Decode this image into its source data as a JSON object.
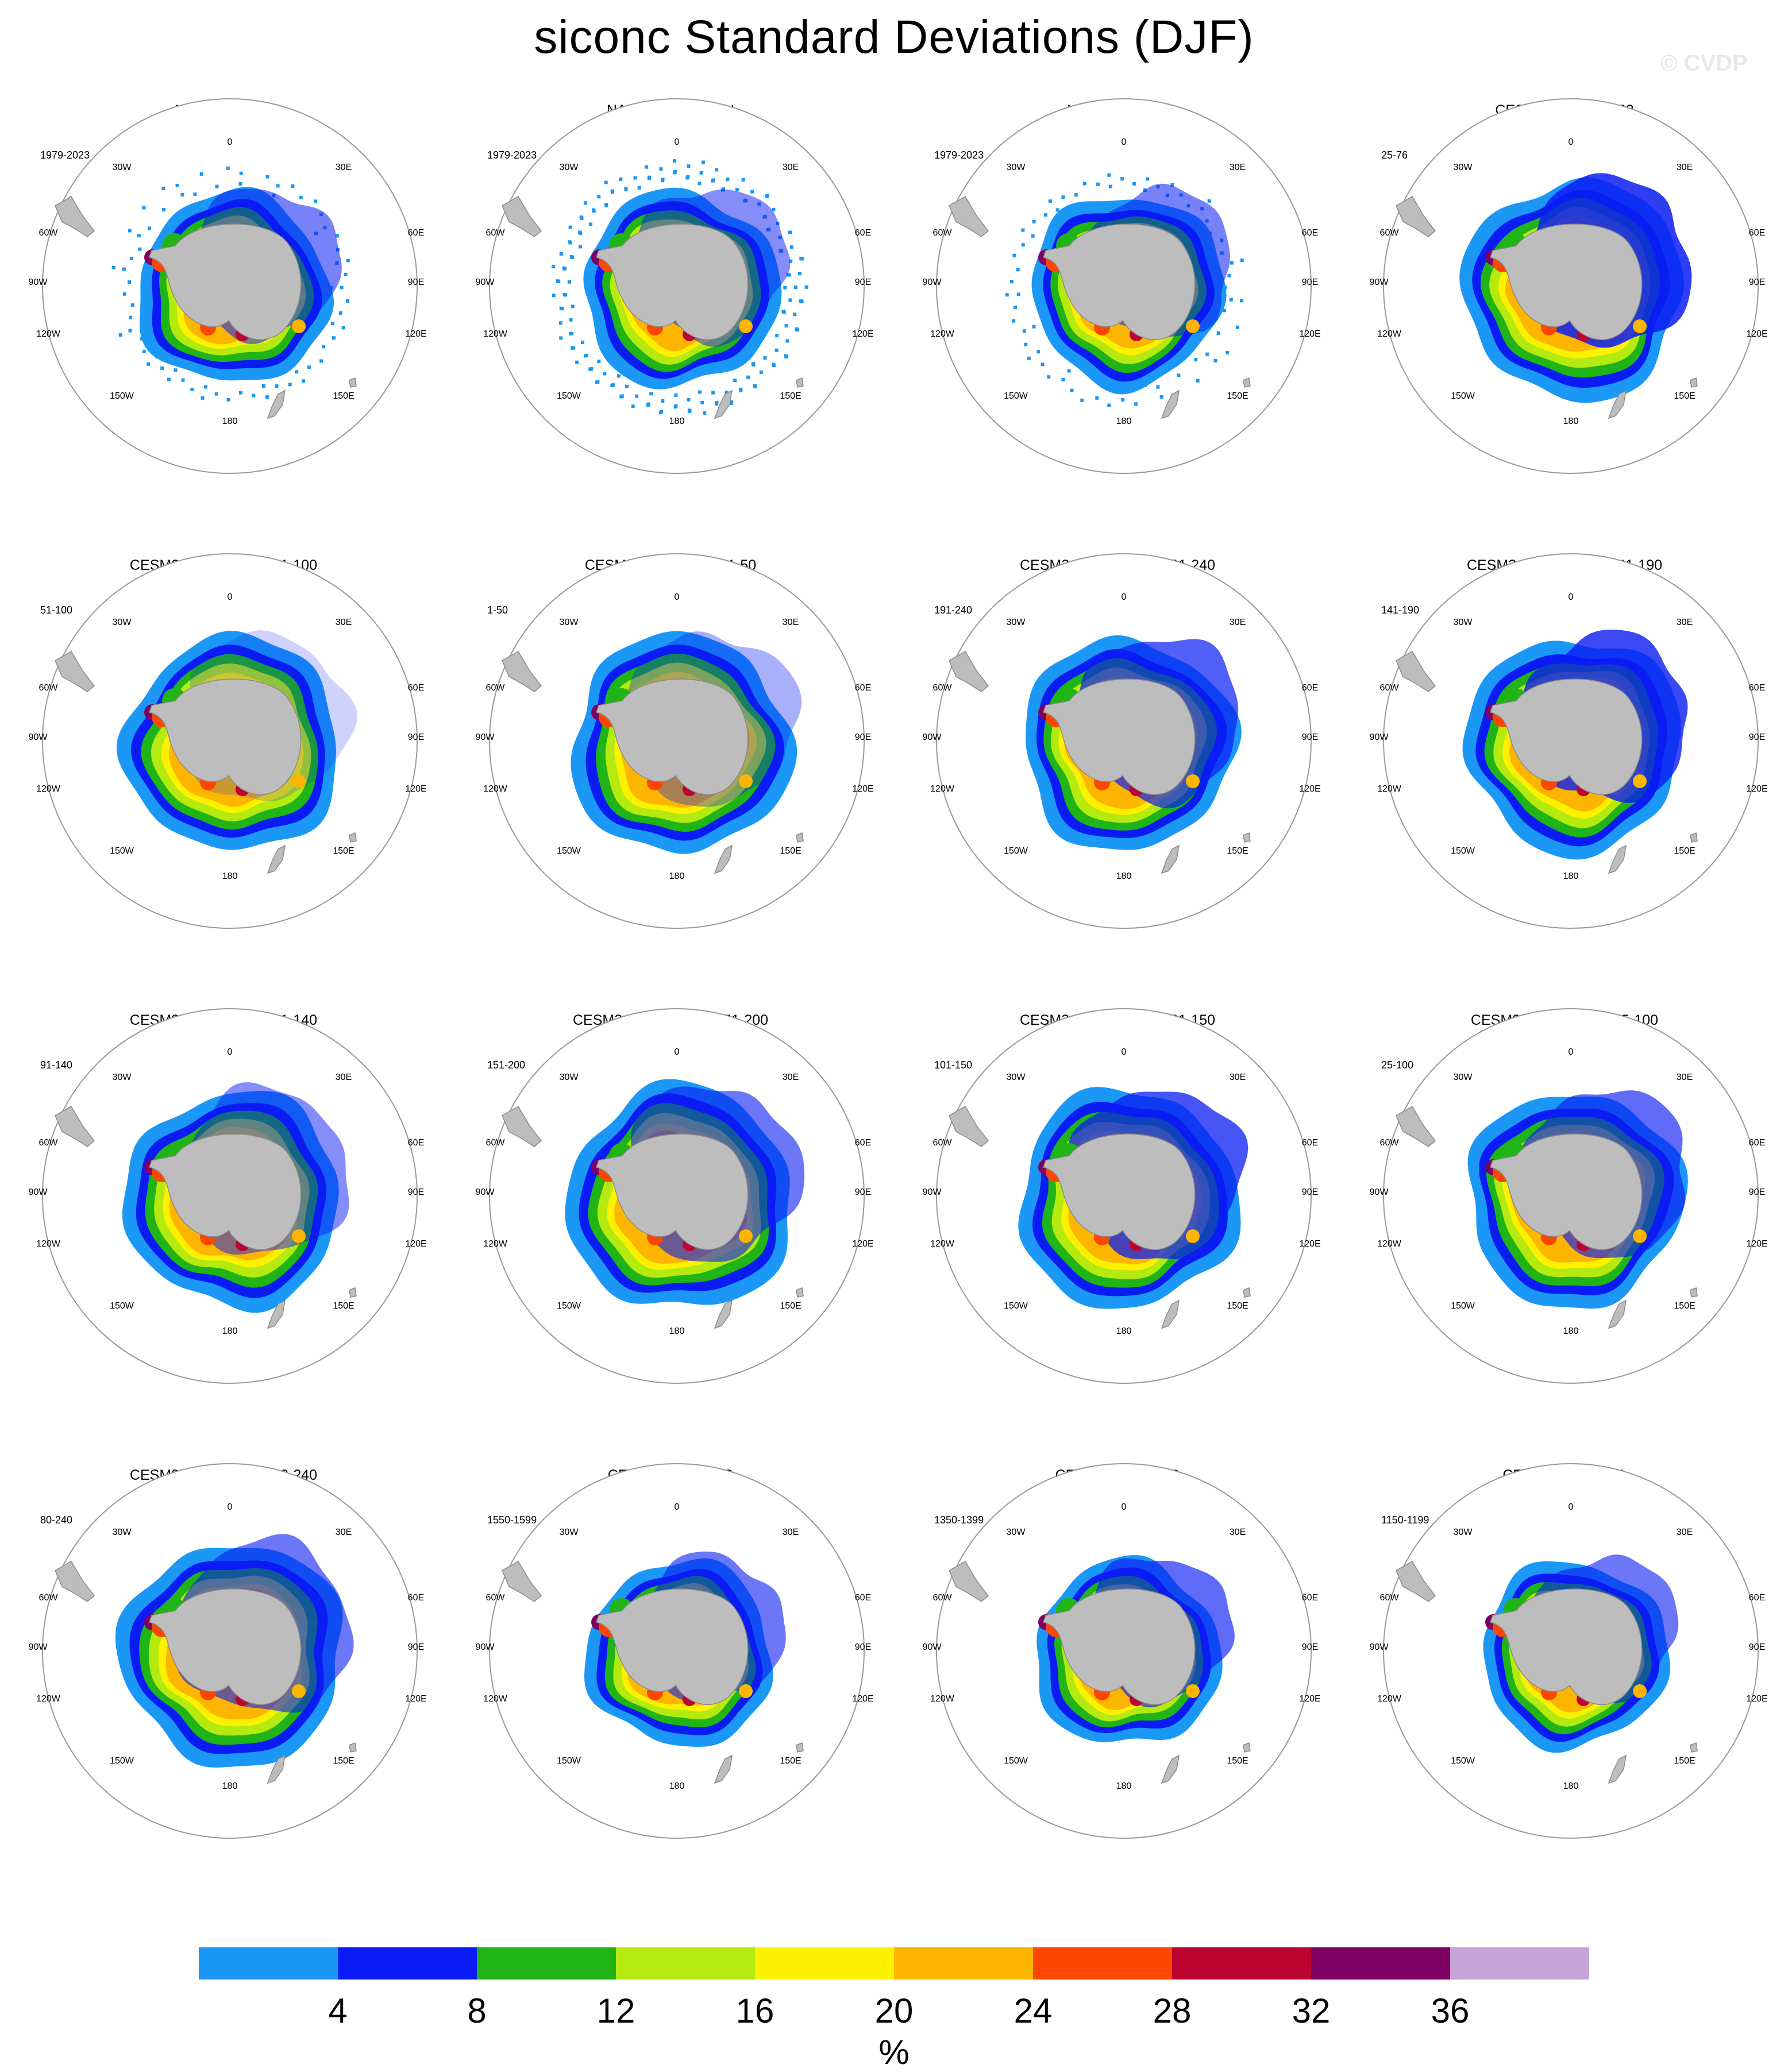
{
  "title": "siconc Standard Deviations (DJF)",
  "watermark": "© CVDP",
  "map_labels": {
    "top": "0",
    "bottom": "180",
    "left": "90W",
    "right": "90E",
    "ul1": "30W",
    "ul2": "60W",
    "ur1": "30E",
    "ur2": "60E",
    "ll1": "120W",
    "ll2": "150W",
    "lr1": "120E",
    "lr2": "150E"
  },
  "colors": {
    "land": "#bdbdbd",
    "land_edge": "#8a8a8a",
    "circle": "#9a9a9a",
    "bg": "#ffffff"
  },
  "chart_data": {
    "type": "heatmap",
    "panels": [
      {
        "title": "NASA CDR SH",
        "period": "1979-2023",
        "extent": 0.98,
        "dark": 0.55,
        "sparse": 1
      },
      {
        "title": "NASA Bootstrap SH",
        "period": "1979-2023",
        "extent": 1.0,
        "dark": 0.5,
        "sparse": 2
      },
      {
        "title": "NASA Team SH",
        "period": "1979-2023",
        "extent": 0.98,
        "dark": 0.55,
        "sparse": 1
      },
      {
        "title": "CESM3 BLT1850 163",
        "period": "25-76",
        "extent": 1.12,
        "dark": 0.85,
        "sparse": 0
      },
      {
        "title": "CESM3 BLT1850 162 51-100",
        "period": "51-100",
        "extent": 1.1,
        "dark": 0.2,
        "sparse": 0
      },
      {
        "title": "CESM3 BLT1850 162 1-50",
        "period": "1-50",
        "extent": 1.12,
        "dark": 0.35,
        "sparse": 0
      },
      {
        "title": "CESM3 BLT1850 156 191-240",
        "period": "191-240",
        "extent": 1.08,
        "dark": 0.7,
        "sparse": 0
      },
      {
        "title": "CESM3 BLT1850 156 141-190",
        "period": "141-190",
        "extent": 1.1,
        "dark": 0.8,
        "sparse": 0
      },
      {
        "title": "CESM3 BLT1850 156 91-140",
        "period": "91-140",
        "extent": 1.1,
        "dark": 0.5,
        "sparse": 0
      },
      {
        "title": "CESM3 BLT1850 121 151-200",
        "period": "151-200",
        "extent": 1.15,
        "dark": 0.6,
        "sparse": 0
      },
      {
        "title": "CESM3 BLT1850 121 101-150",
        "period": "101-150",
        "extent": 1.12,
        "dark": 0.75,
        "sparse": 0
      },
      {
        "title": "CESM3 BLT1850 162 25-100",
        "period": "25-100",
        "extent": 1.1,
        "dark": 0.65,
        "sparse": 0
      },
      {
        "title": "CESM3 BLT1850 156 80-240",
        "period": "80-240",
        "extent": 1.14,
        "dark": 0.6,
        "sparse": 0
      },
      {
        "title": "CESM2 piControl C",
        "period": "1550-1599",
        "extent": 0.95,
        "dark": 0.6,
        "sparse": 0
      },
      {
        "title": "CESM2 piControl B",
        "period": "1350-1399",
        "extent": 0.95,
        "dark": 0.65,
        "sparse": 0
      },
      {
        "title": "CESM2 piControl A",
        "period": "1150-1199",
        "extent": 0.95,
        "dark": 0.6,
        "sparse": 0
      }
    ],
    "colorbar": {
      "unit": "%",
      "ticks": [
        "4",
        "8",
        "12",
        "16",
        "20",
        "24",
        "28",
        "32",
        "36"
      ],
      "colors": [
        "#1b98f5",
        "#0a1cf3",
        "#20b416",
        "#b4ea0f",
        "#fdf000",
        "#fdb500",
        "#fd4600",
        "#bd0430",
        "#7d0062",
        "#c5a4d6"
      ]
    }
  }
}
